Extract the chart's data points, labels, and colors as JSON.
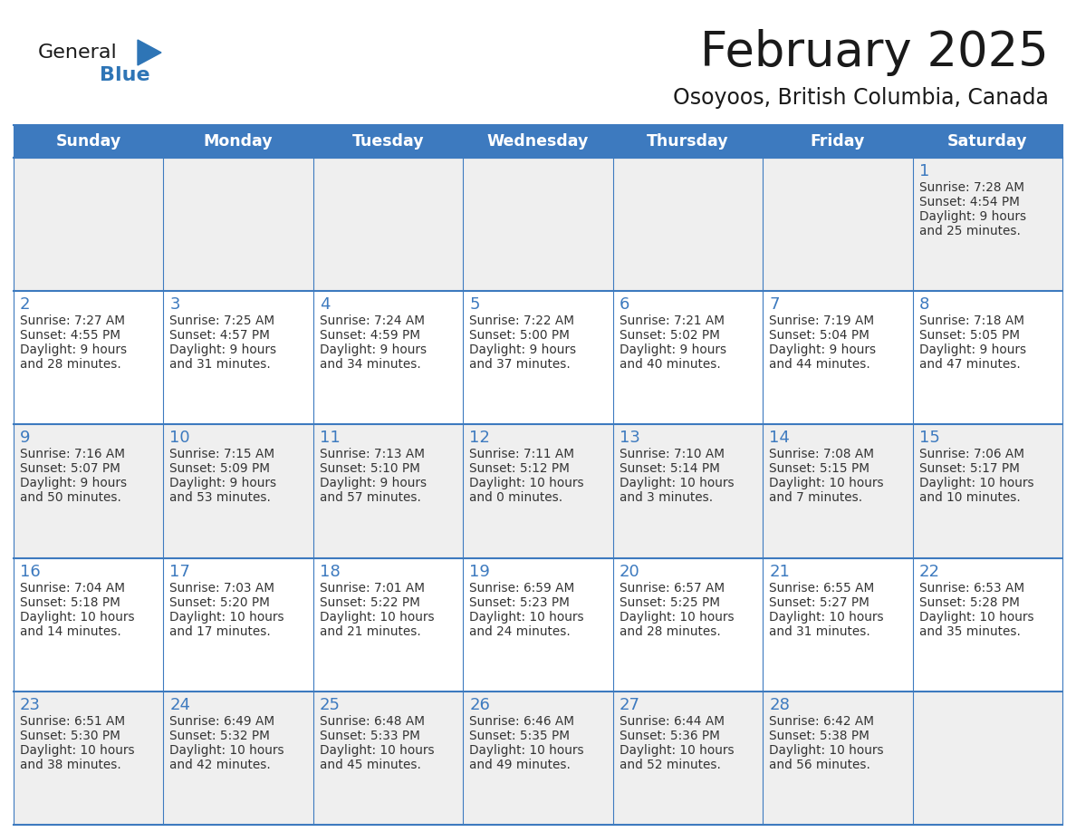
{
  "title": "February 2025",
  "subtitle": "Osoyoos, British Columbia, Canada",
  "days_of_week": [
    "Sunday",
    "Monday",
    "Tuesday",
    "Wednesday",
    "Thursday",
    "Friday",
    "Saturday"
  ],
  "header_bg": "#3D7ABF",
  "header_text": "#FFFFFF",
  "cell_bg_row0": "#EFEFEF",
  "cell_bg_row1": "#FFFFFF",
  "cell_bg_row2": "#EFEFEF",
  "cell_bg_row3": "#FFFFFF",
  "cell_bg_row4": "#EFEFEF",
  "cell_border": "#3D7ABF",
  "day_number_color": "#3D7ABF",
  "text_color": "#333333",
  "title_color": "#1a1a1a",
  "logo_general_color": "#1a1a1a",
  "logo_blue_color": "#2E75B6",
  "calendar_data": [
    {
      "day": 1,
      "row": 0,
      "col": 6,
      "sunrise": "7:28 AM",
      "sunset": "4:54 PM",
      "daylight_h": "9 hours",
      "daylight_m": "and 25 minutes."
    },
    {
      "day": 2,
      "row": 1,
      "col": 0,
      "sunrise": "7:27 AM",
      "sunset": "4:55 PM",
      "daylight_h": "9 hours",
      "daylight_m": "and 28 minutes."
    },
    {
      "day": 3,
      "row": 1,
      "col": 1,
      "sunrise": "7:25 AM",
      "sunset": "4:57 PM",
      "daylight_h": "9 hours",
      "daylight_m": "and 31 minutes."
    },
    {
      "day": 4,
      "row": 1,
      "col": 2,
      "sunrise": "7:24 AM",
      "sunset": "4:59 PM",
      "daylight_h": "9 hours",
      "daylight_m": "and 34 minutes."
    },
    {
      "day": 5,
      "row": 1,
      "col": 3,
      "sunrise": "7:22 AM",
      "sunset": "5:00 PM",
      "daylight_h": "9 hours",
      "daylight_m": "and 37 minutes."
    },
    {
      "day": 6,
      "row": 1,
      "col": 4,
      "sunrise": "7:21 AM",
      "sunset": "5:02 PM",
      "daylight_h": "9 hours",
      "daylight_m": "and 40 minutes."
    },
    {
      "day": 7,
      "row": 1,
      "col": 5,
      "sunrise": "7:19 AM",
      "sunset": "5:04 PM",
      "daylight_h": "9 hours",
      "daylight_m": "and 44 minutes."
    },
    {
      "day": 8,
      "row": 1,
      "col": 6,
      "sunrise": "7:18 AM",
      "sunset": "5:05 PM",
      "daylight_h": "9 hours",
      "daylight_m": "and 47 minutes."
    },
    {
      "day": 9,
      "row": 2,
      "col": 0,
      "sunrise": "7:16 AM",
      "sunset": "5:07 PM",
      "daylight_h": "9 hours",
      "daylight_m": "and 50 minutes."
    },
    {
      "day": 10,
      "row": 2,
      "col": 1,
      "sunrise": "7:15 AM",
      "sunset": "5:09 PM",
      "daylight_h": "9 hours",
      "daylight_m": "and 53 minutes."
    },
    {
      "day": 11,
      "row": 2,
      "col": 2,
      "sunrise": "7:13 AM",
      "sunset": "5:10 PM",
      "daylight_h": "9 hours",
      "daylight_m": "and 57 minutes."
    },
    {
      "day": 12,
      "row": 2,
      "col": 3,
      "sunrise": "7:11 AM",
      "sunset": "5:12 PM",
      "daylight_h": "10 hours",
      "daylight_m": "and 0 minutes."
    },
    {
      "day": 13,
      "row": 2,
      "col": 4,
      "sunrise": "7:10 AM",
      "sunset": "5:14 PM",
      "daylight_h": "10 hours",
      "daylight_m": "and 3 minutes."
    },
    {
      "day": 14,
      "row": 2,
      "col": 5,
      "sunrise": "7:08 AM",
      "sunset": "5:15 PM",
      "daylight_h": "10 hours",
      "daylight_m": "and 7 minutes."
    },
    {
      "day": 15,
      "row": 2,
      "col": 6,
      "sunrise": "7:06 AM",
      "sunset": "5:17 PM",
      "daylight_h": "10 hours",
      "daylight_m": "and 10 minutes."
    },
    {
      "day": 16,
      "row": 3,
      "col": 0,
      "sunrise": "7:04 AM",
      "sunset": "5:18 PM",
      "daylight_h": "10 hours",
      "daylight_m": "and 14 minutes."
    },
    {
      "day": 17,
      "row": 3,
      "col": 1,
      "sunrise": "7:03 AM",
      "sunset": "5:20 PM",
      "daylight_h": "10 hours",
      "daylight_m": "and 17 minutes."
    },
    {
      "day": 18,
      "row": 3,
      "col": 2,
      "sunrise": "7:01 AM",
      "sunset": "5:22 PM",
      "daylight_h": "10 hours",
      "daylight_m": "and 21 minutes."
    },
    {
      "day": 19,
      "row": 3,
      "col": 3,
      "sunrise": "6:59 AM",
      "sunset": "5:23 PM",
      "daylight_h": "10 hours",
      "daylight_m": "and 24 minutes."
    },
    {
      "day": 20,
      "row": 3,
      "col": 4,
      "sunrise": "6:57 AM",
      "sunset": "5:25 PM",
      "daylight_h": "10 hours",
      "daylight_m": "and 28 minutes."
    },
    {
      "day": 21,
      "row": 3,
      "col": 5,
      "sunrise": "6:55 AM",
      "sunset": "5:27 PM",
      "daylight_h": "10 hours",
      "daylight_m": "and 31 minutes."
    },
    {
      "day": 22,
      "row": 3,
      "col": 6,
      "sunrise": "6:53 AM",
      "sunset": "5:28 PM",
      "daylight_h": "10 hours",
      "daylight_m": "and 35 minutes."
    },
    {
      "day": 23,
      "row": 4,
      "col": 0,
      "sunrise": "6:51 AM",
      "sunset": "5:30 PM",
      "daylight_h": "10 hours",
      "daylight_m": "and 38 minutes."
    },
    {
      "day": 24,
      "row": 4,
      "col": 1,
      "sunrise": "6:49 AM",
      "sunset": "5:32 PM",
      "daylight_h": "10 hours",
      "daylight_m": "and 42 minutes."
    },
    {
      "day": 25,
      "row": 4,
      "col": 2,
      "sunrise": "6:48 AM",
      "sunset": "5:33 PM",
      "daylight_h": "10 hours",
      "daylight_m": "and 45 minutes."
    },
    {
      "day": 26,
      "row": 4,
      "col": 3,
      "sunrise": "6:46 AM",
      "sunset": "5:35 PM",
      "daylight_h": "10 hours",
      "daylight_m": "and 49 minutes."
    },
    {
      "day": 27,
      "row": 4,
      "col": 4,
      "sunrise": "6:44 AM",
      "sunset": "5:36 PM",
      "daylight_h": "10 hours",
      "daylight_m": "and 52 minutes."
    },
    {
      "day": 28,
      "row": 4,
      "col": 5,
      "sunrise": "6:42 AM",
      "sunset": "5:38 PM",
      "daylight_h": "10 hours",
      "daylight_m": "and 56 minutes."
    }
  ],
  "num_rows": 5,
  "num_cols": 7,
  "figsize": [
    11.88,
    9.18
  ],
  "dpi": 100
}
